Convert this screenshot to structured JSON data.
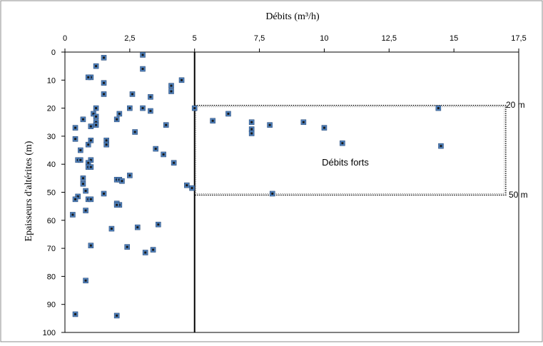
{
  "chart_data": {
    "type": "scatter",
    "title": "Débits (m³/h)",
    "xlabel": "Débits (m³/h)",
    "ylabel": "Epaisseurs d'altérites (m)",
    "xlim": [
      0,
      17.5
    ],
    "ylim": [
      0,
      100
    ],
    "y_inverted": true,
    "x_axis_position": "top",
    "grid": false,
    "x_ticks": [
      "0",
      "2,5",
      "5",
      "7,5",
      "10",
      "12,5",
      "15",
      "17,5"
    ],
    "y_ticks": [
      "0",
      "10",
      "20",
      "30",
      "40",
      "50",
      "60",
      "70",
      "80",
      "90",
      "100"
    ],
    "vertical_line_x": 5,
    "box": {
      "x_from": 5,
      "x_to": 17,
      "y_from": 19,
      "y_to": 51
    },
    "annotations": {
      "box_label": "Débits forts",
      "top_label": "20 m",
      "bottom_label": "50 m"
    },
    "marker_color": "#4f81bd",
    "points": [
      [
        1.5,
        2
      ],
      [
        3,
        1
      ],
      [
        1.2,
        5
      ],
      [
        3,
        6
      ],
      [
        1,
        9
      ],
      [
        0.9,
        9
      ],
      [
        4.5,
        10
      ],
      [
        1.5,
        11
      ],
      [
        4.1,
        12
      ],
      [
        4.1,
        14
      ],
      [
        1.5,
        15
      ],
      [
        2.6,
        15
      ],
      [
        3.3,
        16
      ],
      [
        1.2,
        20
      ],
      [
        2.5,
        20
      ],
      [
        3,
        20
      ],
      [
        3.3,
        21
      ],
      [
        1.1,
        22
      ],
      [
        2.1,
        22
      ],
      [
        5,
        20
      ],
      [
        1.2,
        23
      ],
      [
        0.7,
        24
      ],
      [
        2,
        24
      ],
      [
        1.2,
        25
      ],
      [
        1.2,
        26
      ],
      [
        3.9,
        26
      ],
      [
        0.4,
        27
      ],
      [
        1,
        26.5
      ],
      [
        2.7,
        28.5
      ],
      [
        0.4,
        31
      ],
      [
        1,
        31.5
      ],
      [
        1.6,
        31.5
      ],
      [
        0.9,
        33
      ],
      [
        1.6,
        33
      ],
      [
        3.5,
        34.5
      ],
      [
        0.6,
        35
      ],
      [
        3.8,
        36.5
      ],
      [
        0.5,
        38.5
      ],
      [
        0.6,
        38.5
      ],
      [
        1,
        38.5
      ],
      [
        0.9,
        39.5
      ],
      [
        4.2,
        39.5
      ],
      [
        0.9,
        41
      ],
      [
        1,
        41
      ],
      [
        2.5,
        44
      ],
      [
        0.7,
        45
      ],
      [
        2,
        45.5
      ],
      [
        2.1,
        45.5
      ],
      [
        2.2,
        46
      ],
      [
        0.7,
        47
      ],
      [
        4.7,
        47.5
      ],
      [
        4.9,
        48.5
      ],
      [
        0.8,
        49.5
      ],
      [
        1.5,
        50.5
      ],
      [
        0.5,
        51.5
      ],
      [
        0.4,
        52.5
      ],
      [
        0.9,
        52.5
      ],
      [
        1,
        52.5
      ],
      [
        2,
        54
      ],
      [
        2.1,
        54.5
      ],
      [
        2,
        54.5
      ],
      [
        0.8,
        56.5
      ],
      [
        0.3,
        58
      ],
      [
        3.6,
        61.5
      ],
      [
        2.8,
        62.5
      ],
      [
        1.8,
        63
      ],
      [
        1,
        69
      ],
      [
        2.4,
        69.5
      ],
      [
        3.4,
        70.5
      ],
      [
        3.1,
        71.5
      ],
      [
        0.8,
        81.5
      ],
      [
        0.4,
        93.5
      ],
      [
        2,
        94
      ],
      [
        14.4,
        20
      ],
      [
        6.3,
        22
      ],
      [
        5.7,
        24.5
      ],
      [
        7.2,
        25
      ],
      [
        9.2,
        25
      ],
      [
        7.9,
        26
      ],
      [
        10,
        27
      ],
      [
        7.2,
        27.5
      ],
      [
        7.2,
        29
      ],
      [
        10.7,
        32.5
      ],
      [
        14.5,
        33.5
      ],
      [
        8,
        50.5
      ]
    ]
  }
}
